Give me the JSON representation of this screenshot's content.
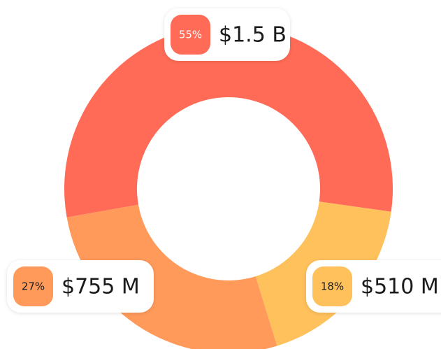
{
  "chart_data": {
    "type": "donut",
    "categories": [
      null,
      null,
      null
    ],
    "values": [
      55,
      27,
      18
    ],
    "value_labels": [
      "55%",
      "27%",
      "18%"
    ],
    "amounts": [
      "$1.5 B",
      "$755 M",
      "$510 M"
    ],
    "colors": [
      "#ff6b57",
      "#ff9a5a",
      "#ffc15b"
    ]
  }
}
